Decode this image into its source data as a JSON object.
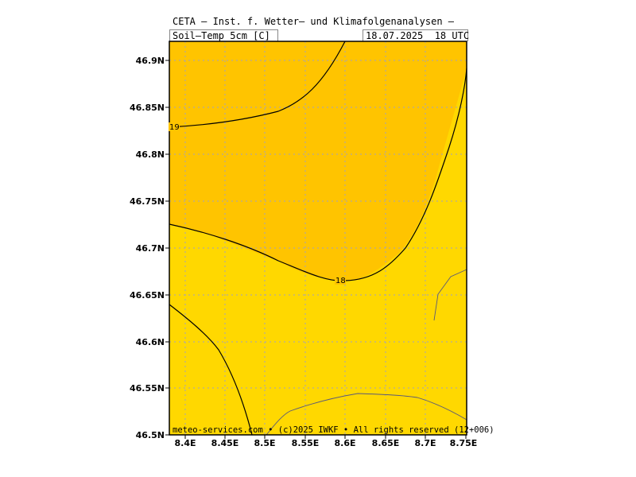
{
  "header": {
    "title": "CETA — Inst. f. Wetter— und Klimafolgenanalysen —",
    "variable": "Soil—Temp_5cm_[C]",
    "valid_time": "18.07.2025  18 UTC"
  },
  "map": {
    "lat_labels": [
      "46.9N",
      "46.85N",
      "46.8N",
      "46.75N",
      "46.7N",
      "46.65N",
      "46.6N",
      "46.55N",
      "46.5N"
    ],
    "lon_labels": [
      "8.4E",
      "8.45E",
      "8.5E",
      "8.55E",
      "8.6E",
      "8.65E",
      "8.7E",
      "8.75E"
    ],
    "contour_labels": [
      "19",
      "18"
    ],
    "colors": {
      "warm_band": "#ffc400",
      "cool_band": "#ffd800",
      "contour": "#000000",
      "border": "#5a5a78",
      "grid": "#a0a0c0"
    },
    "credit": "meteo-services.com • (c)2025 IWKF • All rights reserved (12+006)"
  }
}
